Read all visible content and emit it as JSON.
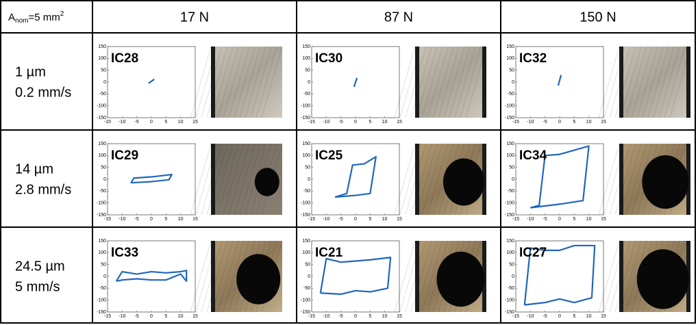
{
  "table": {
    "header": {
      "corner": {
        "a": "A",
        "sub": "nom",
        "eq": "=5 mm",
        "sup": "2"
      },
      "columns": [
        "17 N",
        "87 N",
        "150 N"
      ]
    },
    "axes": {
      "xlim": [
        -15,
        15
      ],
      "ylim": [
        -150,
        150
      ],
      "xticks": [
        -15,
        -10,
        -5,
        0,
        5,
        10,
        15
      ],
      "yticks": [
        -150,
        -100,
        -50,
        0,
        50,
        100,
        150
      ],
      "color": "#1f65c0"
    },
    "rows": [
      {
        "label": [
          "1 µm",
          "0.2 mm/s"
        ],
        "cells": [
          {
            "id": "IC28",
            "x": [
              -1,
              1
            ],
            "y": [
              -5,
              12
            ]
          },
          {
            "id": "IC30",
            "x": [
              -0.5,
              0.5
            ],
            "y": [
              -20,
              18
            ]
          },
          {
            "id": "IC32",
            "x": [
              -0.5,
              0.5
            ],
            "y": [
              -15,
              30
            ]
          }
        ]
      },
      {
        "label": [
          "14 µm",
          "2.8 mm/s"
        ],
        "cells": [
          {
            "id": "IC29",
            "x": [
              -7,
              -6,
              0,
              7,
              6,
              0,
              -7
            ],
            "y": [
              -15,
              5,
              10,
              20,
              -2,
              -10,
              -15
            ]
          },
          {
            "id": "IC25",
            "x": [
              -7,
              -3,
              -1,
              3,
              7,
              5,
              0,
              -7
            ],
            "y": [
              -75,
              -60,
              60,
              65,
              95,
              -60,
              -68,
              -75
            ]
          },
          {
            "id": "IC34",
            "x": [
              -10,
              -7,
              -5,
              0,
              10,
              8,
              0,
              -10
            ],
            "y": [
              -120,
              -110,
              100,
              105,
              140,
              -90,
              -105,
              -120
            ]
          }
        ]
      },
      {
        "label": [
          "24.5 µm",
          "5 mm/s"
        ],
        "cells": [
          {
            "id": "IC33",
            "x": [
              -12,
              -10,
              -5,
              0,
              5,
              10,
              12,
              12,
              10,
              5,
              0,
              -5,
              -10,
              -12
            ],
            "y": [
              -20,
              20,
              10,
              20,
              15,
              20,
              25,
              -20,
              10,
              -15,
              -15,
              -10,
              -15,
              -20
            ]
          },
          {
            "id": "IC21",
            "x": [
              -12,
              -10,
              -5,
              0,
              5,
              12,
              11,
              5,
              0,
              -5,
              -12
            ],
            "y": [
              -70,
              75,
              60,
              65,
              70,
              80,
              -50,
              -65,
              -60,
              -75,
              -70
            ]
          },
          {
            "id": "IC27",
            "x": [
              -12,
              -10,
              -5,
              0,
              5,
              12,
              11,
              5,
              0,
              -5,
              -12
            ],
            "y": [
              -120,
              120,
              110,
              110,
              130,
              130,
              -90,
              -110,
              -95,
              -110,
              -120
            ]
          }
        ]
      }
    ]
  }
}
